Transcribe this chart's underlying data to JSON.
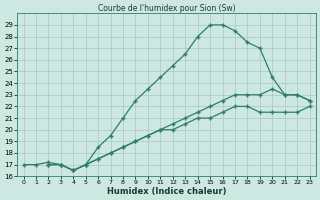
{
  "line1_x": [
    0,
    1,
    2,
    3,
    4,
    5,
    6,
    7,
    8,
    9,
    10,
    11,
    12,
    13,
    14,
    15,
    16,
    17,
    18,
    19,
    20,
    21,
    22,
    23
  ],
  "line1_y": [
    17,
    17,
    17.2,
    17,
    16.5,
    17,
    18.5,
    19.5,
    21,
    22.5,
    23.5,
    24.5,
    25.5,
    26.5,
    28,
    29,
    29,
    28.5,
    27.5,
    27,
    24.5,
    23,
    23,
    22.5
  ],
  "line2_x": [
    2,
    3,
    4,
    5,
    6,
    7,
    8,
    9,
    10,
    11,
    12,
    13,
    14,
    15,
    16,
    17,
    18,
    19,
    20,
    21,
    22,
    23
  ],
  "line2_y": [
    17,
    17,
    16.5,
    17,
    17.5,
    18,
    18.5,
    19,
    19.5,
    20,
    20.5,
    21,
    21.5,
    22,
    22.5,
    23,
    23,
    23,
    23.5,
    23,
    23,
    22.5
  ],
  "line3_x": [
    2,
    3,
    4,
    5,
    6,
    7,
    8,
    9,
    10,
    11,
    12,
    13,
    14,
    15,
    16,
    17,
    18,
    19,
    20,
    21,
    22,
    23
  ],
  "line3_y": [
    17,
    17,
    16.5,
    17,
    17.5,
    18,
    18.5,
    19,
    19.5,
    20,
    20,
    20.5,
    21,
    21,
    21.5,
    22,
    22,
    21.5,
    21.5,
    21.5,
    21.5,
    22
  ],
  "line_color": "#2e7d6e",
  "bg_color": "#cce8e0",
  "grid_color": "#aac8c0",
  "title": "Courbe de l'humidex pour Sion (Sw)",
  "xlabel": "Humidex (Indice chaleur)",
  "xlim": [
    -0.5,
    23.5
  ],
  "ylim": [
    16,
    30
  ],
  "yticks": [
    16,
    17,
    18,
    19,
    20,
    21,
    22,
    23,
    24,
    25,
    26,
    27,
    28,
    29
  ],
  "xticks": [
    0,
    1,
    2,
    3,
    4,
    5,
    6,
    7,
    8,
    9,
    10,
    11,
    12,
    13,
    14,
    15,
    16,
    17,
    18,
    19,
    20,
    21,
    22,
    23
  ],
  "xtick_labels": [
    "0",
    "1",
    "2",
    "3",
    "4",
    "5",
    "6",
    "7",
    "8",
    "9",
    "10",
    "11",
    "12",
    "13",
    "14",
    "15",
    "16",
    "17",
    "18",
    "19",
    "20",
    "21",
    "22",
    "23"
  ]
}
